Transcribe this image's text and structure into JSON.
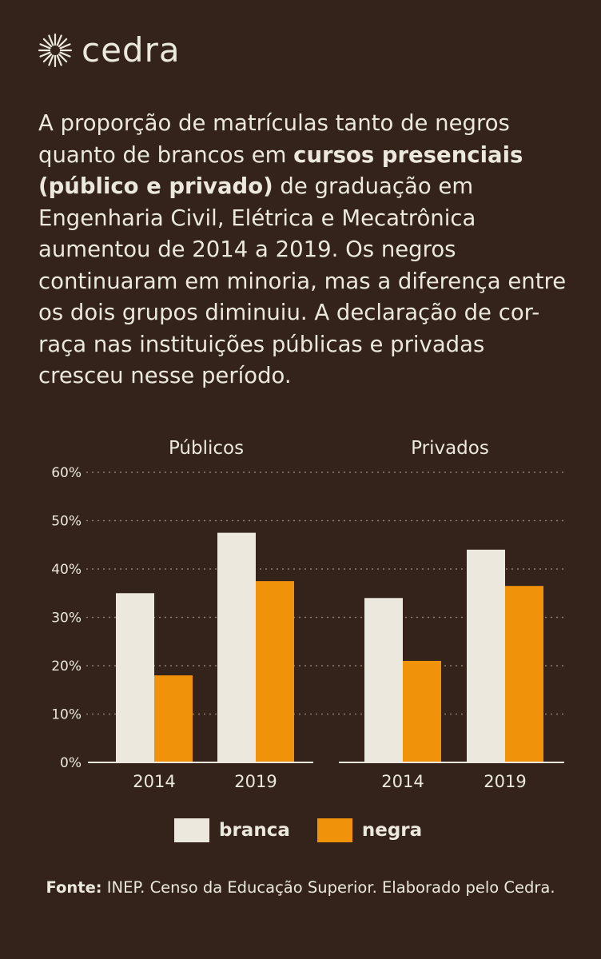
{
  "brand": {
    "name": "cedra",
    "icon": "sun-burst-icon"
  },
  "intro": {
    "part1": "A proporção de matrículas tanto de negros quanto de brancos em ",
    "bold": "cursos presenciais (público e privado)",
    "part2": " de graduação em Engenharia Civil, Elétrica e Mecatrônica aumentou de 2014 a 2019. Os negros continuaram em minoria, mas a diferença entre os dois grupos diminuiu. A declaração de cor-raça nas instituições públicas e privadas cresceu nesse período."
  },
  "chart_data": {
    "type": "bar",
    "panels": [
      {
        "title": "Públicos",
        "categories": [
          "2014",
          "2019"
        ],
        "series": [
          {
            "name": "branca",
            "values": [
              35,
              47.5
            ]
          },
          {
            "name": "negra",
            "values": [
              18,
              37.5
            ]
          }
        ]
      },
      {
        "title": "Privados",
        "categories": [
          "2014",
          "2019"
        ],
        "series": [
          {
            "name": "branca",
            "values": [
              34,
              44
            ]
          },
          {
            "name": "negra",
            "values": [
              21,
              36.5
            ]
          }
        ]
      }
    ],
    "yticks": [
      "0%",
      "10%",
      "20%",
      "30%",
      "40%",
      "50%",
      "60%"
    ],
    "ylim": [
      0,
      60
    ],
    "grid": true,
    "legend": "bottom",
    "colors": {
      "branca": "#ece8de",
      "negra": "#f0930a"
    }
  },
  "legend": {
    "items": [
      {
        "label": "branca",
        "color": "#ece8de"
      },
      {
        "label": "negra",
        "color": "#f0930a"
      }
    ]
  },
  "source": {
    "label": "Fonte:",
    "text": " INEP. Censo da Educação Superior. Elaborado pelo Cedra."
  }
}
